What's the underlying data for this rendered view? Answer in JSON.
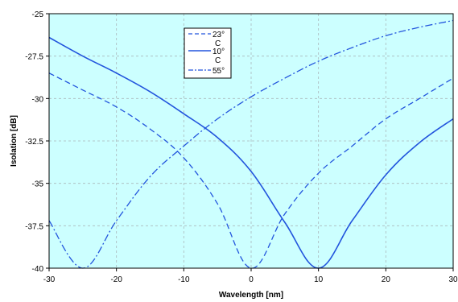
{
  "chart_data": {
    "type": "line",
    "title": "",
    "xlabel": "Wavelength [nm]",
    "ylabel": "Isolation [dB]",
    "xlim": [
      -30,
      30
    ],
    "ylim": [
      -40,
      -25
    ],
    "x_ticks": [
      "-30",
      "-20",
      "-10",
      "0",
      "10",
      "20",
      "30"
    ],
    "y_ticks": [
      "-25",
      "-27.5",
      "-30",
      "-32.5",
      "-35",
      "-37.5",
      "-40"
    ],
    "grid": true,
    "legend_position": "top-center",
    "colors": {
      "plot_background": "#ccffff",
      "series": "#2255dd",
      "grid": "#aab8bb"
    },
    "series": [
      {
        "name": "23°C",
        "style": "dashed",
        "x": [
          -30,
          -25,
          -20,
          -15,
          -10,
          -5,
          0,
          5,
          10,
          15,
          20,
          25,
          30
        ],
        "y": [
          -28.5,
          -29.5,
          -30.5,
          -31.8,
          -33.5,
          -36.2,
          -40,
          -36.8,
          -34.4,
          -32.8,
          -31.2,
          -30,
          -28.8
        ]
      },
      {
        "name": "10°C",
        "style": "solid",
        "x": [
          -30,
          -25,
          -20,
          -15,
          -10,
          -5,
          0,
          5,
          10,
          15,
          20,
          25,
          30
        ],
        "y": [
          -26.4,
          -27.5,
          -28.5,
          -29.6,
          -30.9,
          -32.3,
          -34.3,
          -37.3,
          -40,
          -37.2,
          -34.5,
          -32.6,
          -31.2
        ]
      },
      {
        "name": "55°C",
        "style": "dash-dot",
        "x": [
          -30,
          -25,
          -20,
          -15,
          -10,
          -5,
          0,
          5,
          10,
          15,
          20,
          25,
          30
        ],
        "y": [
          -37.2,
          -40,
          -37.2,
          -34.6,
          -32.8,
          -31.2,
          -29.9,
          -28.8,
          -27.8,
          -27,
          -26.3,
          -25.8,
          -25.4
        ]
      }
    ],
    "legend": [
      {
        "label": "23°",
        "sub": "C"
      },
      {
        "label": "10°",
        "sub": "C"
      },
      {
        "label": "55°",
        "sub": ""
      }
    ]
  }
}
